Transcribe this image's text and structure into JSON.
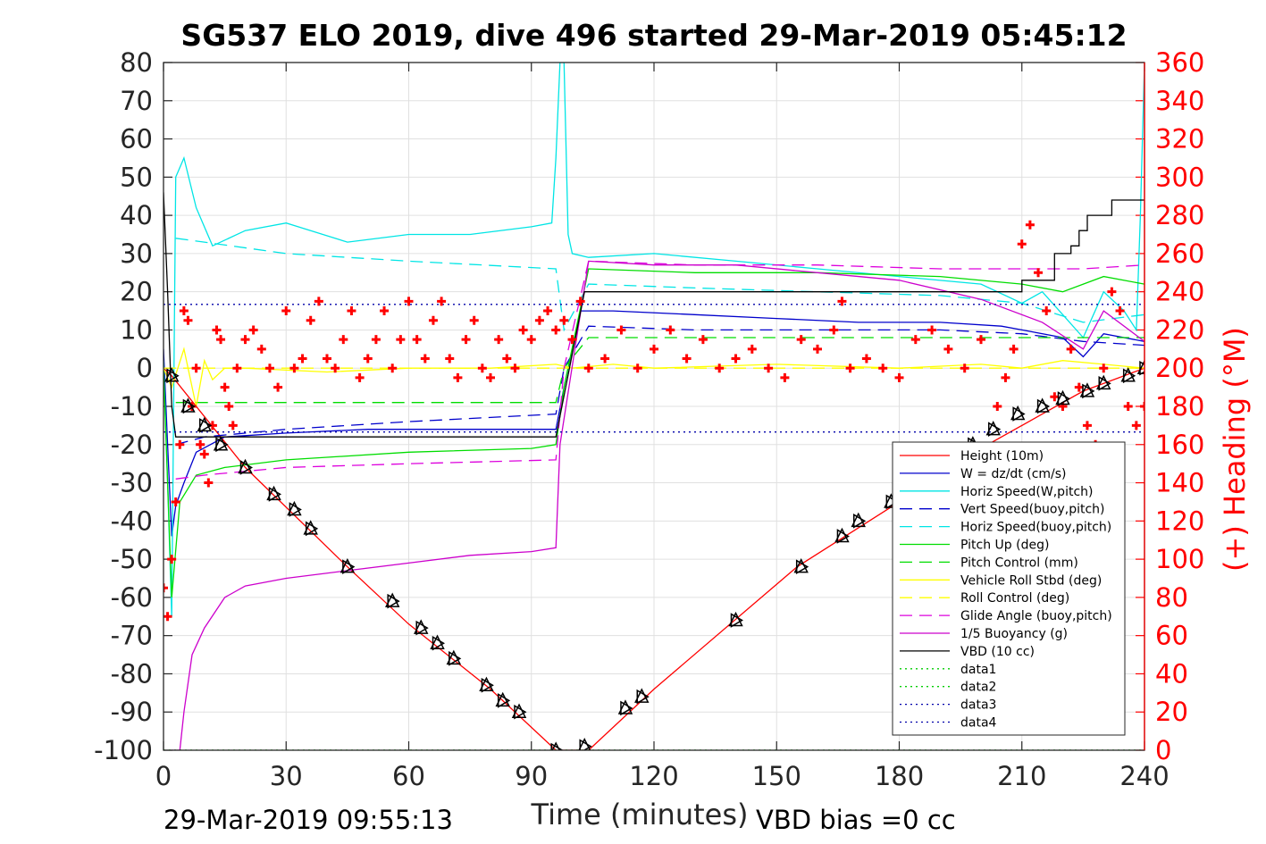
{
  "chart_data": {
    "type": "line",
    "title": "SG537 ELO 2019, dive 496 started 29-Mar-2019 05:45:12",
    "xlabel": "Time (minutes)",
    "ylabel_right": "(+) Heading (°M)",
    "footer_left": "29-Mar-2019 09:55:13",
    "footer_right": "VBD bias =0 cc",
    "xlim": [
      0,
      240
    ],
    "ylim": [
      -100,
      80
    ],
    "ylim_right": [
      0,
      360
    ],
    "xticks": [
      "0",
      "30",
      "60",
      "90",
      "120",
      "150",
      "180",
      "210",
      "240"
    ],
    "yticks": [
      "80",
      "70",
      "60",
      "50",
      "40",
      "30",
      "20",
      "10",
      "0",
      "-10",
      "-20",
      "-30",
      "-40",
      "-50",
      "-60",
      "-70",
      "-80",
      "-90",
      "-100"
    ],
    "yticks_right": [
      "360",
      "340",
      "320",
      "300",
      "280",
      "260",
      "240",
      "220",
      "200",
      "180",
      "160",
      "140",
      "120",
      "100",
      "80",
      "60",
      "40",
      "20",
      "0"
    ],
    "grid": true,
    "legend_position": "bottom-right",
    "colors": {
      "height": "#ff0000",
      "w": "#0000cc",
      "horiz_w": "#00e5e5",
      "pitch": "#00dd00",
      "roll": "#ffff00",
      "glide": "#dd00dd",
      "buoy": "#cc00cc",
      "vbd": "#000000",
      "heading": "#ff0000",
      "data12": "#00cc00",
      "data34": "#0000aa"
    },
    "series": [
      {
        "name": "Height (10m)",
        "style": "solid",
        "color": "#ff0000",
        "x": [
          0,
          2,
          20,
          45,
          60,
          80,
          96,
          104,
          120,
          155,
          180,
          200,
          215,
          225,
          240
        ],
        "y": [
          0,
          -2,
          -26,
          -52,
          -67,
          -84,
          -100,
          -100,
          -84,
          -52,
          -35,
          -21,
          -12,
          -6,
          0
        ]
      },
      {
        "name": "W = dz/dt (cm/s)",
        "style": "solid",
        "color": "#0000cc",
        "x": [
          0,
          1,
          2,
          3,
          5,
          8,
          15,
          30,
          50,
          70,
          90,
          96,
          98,
          102,
          110,
          130,
          150,
          170,
          190,
          205,
          210,
          220,
          225,
          230,
          240
        ],
        "y": [
          5,
          -20,
          -44,
          -36,
          -30,
          -22,
          -18,
          -17,
          -16,
          -16,
          -16,
          -16,
          -5,
          15,
          15,
          14,
          13,
          12,
          12,
          11,
          10,
          8,
          3,
          9,
          7
        ]
      },
      {
        "name": "Horiz Speed(W,pitch)",
        "style": "solid",
        "color": "#00e5e5",
        "x": [
          0,
          1,
          2,
          3,
          5,
          8,
          12,
          20,
          30,
          45,
          60,
          75,
          90,
          95,
          96,
          97,
          98,
          99,
          100,
          104,
          120,
          140,
          160,
          180,
          200,
          210,
          215,
          220,
          225,
          230,
          235,
          238,
          239,
          240
        ],
        "y": [
          2,
          -30,
          -65,
          50,
          55,
          42,
          32,
          36,
          38,
          33,
          35,
          35,
          37,
          38,
          55,
          80,
          80,
          35,
          30,
          29,
          30,
          28,
          26,
          24,
          22,
          17,
          20,
          14,
          8,
          20,
          15,
          10,
          40,
          80
        ]
      },
      {
        "name": "Vert Speed(buoy,pitch)",
        "style": "dashed",
        "color": "#0000cc",
        "x": [
          3,
          10,
          30,
          60,
          96,
          98,
          104,
          130,
          160,
          190,
          210,
          225,
          240
        ],
        "y": [
          -20,
          -18,
          -16,
          -14,
          -12,
          0,
          11,
          10,
          10,
          10,
          9,
          7,
          6
        ]
      },
      {
        "name": "Horiz Speed(buoy,pitch)",
        "style": "dashed",
        "color": "#00e5e5",
        "x": [
          3,
          10,
          30,
          60,
          96,
          98,
          104,
          130,
          160,
          190,
          210,
          225,
          240
        ],
        "y": [
          34,
          33,
          30,
          28,
          26,
          10,
          22,
          21,
          20,
          19,
          17,
          12,
          14
        ]
      },
      {
        "name": "Pitch Up (deg)",
        "style": "solid",
        "color": "#00dd00",
        "x": [
          0,
          2,
          4,
          8,
          15,
          30,
          60,
          90,
          96,
          98,
          104,
          130,
          160,
          190,
          210,
          220,
          230,
          240
        ],
        "y": [
          0,
          -60,
          -35,
          -28,
          -26,
          -24,
          -22,
          -21,
          -20,
          -5,
          26,
          25,
          25,
          24,
          22,
          20,
          24,
          22
        ]
      },
      {
        "name": "Pitch Control (mm)",
        "style": "dashed",
        "color": "#00dd00",
        "x": [
          3,
          20,
          60,
          96,
          98,
          104,
          130,
          160,
          190,
          210,
          225,
          240
        ],
        "y": [
          -9,
          -9,
          -9,
          -9,
          0,
          8,
          8,
          8,
          8,
          8,
          8,
          8
        ]
      },
      {
        "name": "Vehicle Roll Stbd (deg)",
        "style": "solid",
        "color": "#ffff00",
        "x": [
          0,
          2,
          5,
          8,
          10,
          12,
          15,
          20,
          40,
          60,
          80,
          96,
          100,
          110,
          120,
          150,
          180,
          200,
          210,
          220,
          230,
          240
        ],
        "y": [
          0,
          -5,
          5,
          -10,
          2,
          -3,
          0,
          0,
          -1,
          0,
          0,
          1,
          0,
          1,
          0,
          1,
          0,
          1,
          0,
          2,
          1,
          0
        ]
      },
      {
        "name": "Roll Control (deg)",
        "style": "dashed",
        "color": "#ffff00",
        "x": [
          0,
          20,
          60,
          96,
          120,
          160,
          200,
          240
        ],
        "y": [
          0,
          0,
          0,
          0,
          0,
          0,
          0,
          0
        ]
      },
      {
        "name": "Glide Angle (buoy,pitch)",
        "style": "dashed",
        "color": "#dd00dd",
        "x": [
          3,
          10,
          30,
          60,
          96,
          98,
          104,
          130,
          160,
          190,
          210,
          225,
          240
        ],
        "y": [
          -29,
          -28,
          -26,
          -25,
          -24,
          0,
          28,
          27,
          27,
          26,
          26,
          26,
          27
        ]
      },
      {
        "name": "1/5 Buoyancy (g)",
        "style": "solid",
        "color": "#cc00cc",
        "x": [
          2,
          4,
          5,
          7,
          10,
          15,
          20,
          30,
          45,
          60,
          75,
          90,
          96,
          97,
          104,
          120,
          140,
          160,
          180,
          200,
          215,
          225,
          230,
          240
        ],
        "y": [
          -100,
          -100,
          -90,
          -75,
          -68,
          -60,
          -57,
          -55,
          -53,
          -51,
          -49,
          -48,
          -47,
          -20,
          28,
          27,
          27,
          25,
          23,
          18,
          12,
          5,
          15,
          7
        ]
      },
      {
        "name": "VBD (10 cc)",
        "style": "solid",
        "color": "#000000",
        "x": [
          0,
          1,
          2,
          3,
          96,
          96,
          103,
          103,
          210,
          210,
          218,
          218,
          222,
          222,
          224,
          224,
          226,
          226,
          232,
          232,
          240
        ],
        "y": [
          46,
          20,
          -10,
          -18,
          -18,
          -18,
          20,
          20,
          20,
          23,
          23,
          30,
          30,
          32,
          32,
          36,
          36,
          40,
          40,
          44,
          44
        ]
      },
      {
        "name": "data1",
        "style": "dotted",
        "color": "#00cc00",
        "x": [
          0,
          240
        ],
        "y": [
          -100,
          -100
        ]
      },
      {
        "name": "data2",
        "style": "dotted",
        "color": "#00cc00",
        "x": [
          0,
          240
        ],
        "y": [
          -100,
          -100
        ]
      },
      {
        "name": "data3",
        "style": "dotted",
        "color": "#0000aa",
        "x": [
          0,
          240
        ],
        "y": [
          16.7,
          16.7
        ]
      },
      {
        "name": "data4",
        "style": "dotted",
        "color": "#0000aa",
        "x": [
          0,
          240
        ],
        "y": [
          -16.7,
          -16.7
        ]
      }
    ],
    "heading_series": {
      "axis": "right",
      "color": "#ff0000",
      "marker": "plus",
      "x": [
        0,
        1,
        2,
        3,
        4,
        5,
        6,
        7,
        8,
        9,
        10,
        11,
        12,
        13,
        14,
        15,
        16,
        17,
        18,
        20,
        22,
        24,
        26,
        28,
        30,
        32,
        34,
        36,
        38,
        40,
        42,
        44,
        46,
        48,
        50,
        52,
        54,
        56,
        58,
        60,
        62,
        64,
        66,
        68,
        70,
        72,
        74,
        76,
        78,
        80,
        82,
        84,
        86,
        88,
        90,
        92,
        94,
        96,
        98,
        100,
        102,
        104,
        108,
        112,
        116,
        120,
        124,
        128,
        132,
        136,
        140,
        144,
        148,
        152,
        156,
        160,
        164,
        166,
        168,
        172,
        176,
        180,
        184,
        188,
        192,
        196,
        200,
        204,
        206,
        208,
        210,
        212,
        214,
        216,
        218,
        220,
        222,
        224,
        226,
        228,
        230,
        232,
        234,
        236,
        238,
        240
      ],
      "y": [
        85,
        70,
        100,
        130,
        160,
        230,
        225,
        180,
        200,
        160,
        155,
        140,
        170,
        220,
        215,
        190,
        180,
        170,
        200,
        215,
        220,
        210,
        200,
        190,
        230,
        200,
        205,
        225,
        235,
        205,
        200,
        215,
        230,
        195,
        205,
        215,
        230,
        200,
        215,
        235,
        215,
        205,
        225,
        235,
        205,
        195,
        215,
        225,
        200,
        195,
        215,
        205,
        200,
        220,
        215,
        225,
        230,
        220,
        225,
        215,
        235,
        200,
        205,
        220,
        200,
        210,
        220,
        205,
        215,
        200,
        205,
        210,
        200,
        195,
        215,
        210,
        220,
        235,
        200,
        205,
        200,
        195,
        215,
        220,
        210,
        200,
        215,
        180,
        195,
        210,
        265,
        275,
        250,
        230,
        185,
        180,
        210,
        190,
        170,
        160,
        200,
        240,
        230,
        180,
        170,
        180
      ]
    },
    "markers": {
      "name": "Height markers",
      "color": "#000000",
      "x": [
        2,
        6,
        10,
        14,
        20,
        27,
        32,
        36,
        45,
        56,
        63,
        67,
        71,
        79,
        83,
        87,
        96,
        103,
        113,
        117,
        140,
        156,
        166,
        170,
        178,
        185,
        192,
        198,
        203,
        209,
        215,
        220,
        226,
        230,
        236,
        240
      ],
      "y": [
        -2,
        -10,
        -15,
        -20,
        -26,
        -33,
        -37,
        -42,
        -52,
        -61,
        -68,
        -72,
        -76,
        -83,
        -87,
        -90,
        -100,
        -99,
        -89,
        -86,
        -66,
        -52,
        -44,
        -40,
        -35,
        -30,
        -25,
        -20,
        -16,
        -12,
        -10,
        -8,
        -6,
        -4,
        -2,
        0
      ]
    }
  }
}
